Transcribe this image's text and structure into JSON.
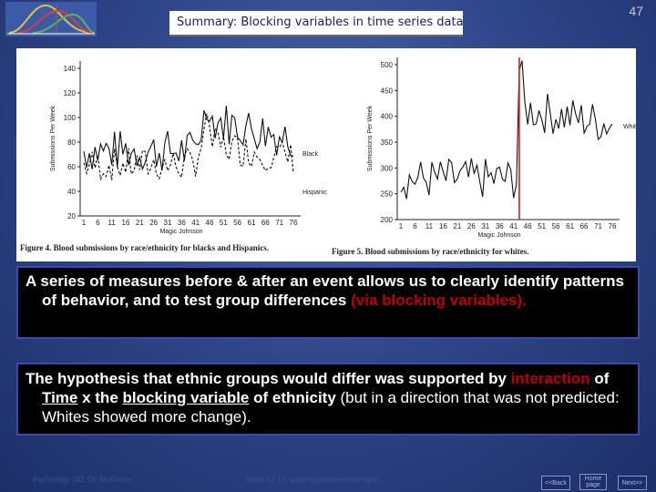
{
  "slide": {
    "title": "Summary:  Blocking variables in time series data",
    "number": "47"
  },
  "figures": [
    {
      "caption": "Figure 4. Blood submissions by race/ethnicity for blacks and Hispanics.",
      "ylabel": "Submissions Per Week",
      "xlabel": "Magic Johnson",
      "yticks": [
        "140",
        "120",
        "100",
        "80",
        "60",
        "40",
        "20"
      ],
      "xticks": [
        "1",
        "6",
        "11",
        "16",
        "21",
        "26",
        "31",
        "36",
        "41",
        "46",
        "51",
        "56",
        "61",
        "66",
        "71",
        "76"
      ],
      "series": [
        "Black",
        "Hispanic"
      ]
    },
    {
      "caption": "Figure 5. Blood submissions by race/ethnicity for whites.",
      "ylabel": "Submissions Per Week",
      "xlabel": "Magic Johnson",
      "yticks": [
        "500",
        "450",
        "400",
        "350",
        "300",
        "250",
        "200"
      ],
      "xticks": [
        "1",
        "6",
        "11",
        "16",
        "21",
        "26",
        "31",
        "36",
        "41",
        "46",
        "51",
        "56",
        "61",
        "66",
        "71",
        "76"
      ],
      "series": [
        "White"
      ]
    }
  ],
  "box1": {
    "text": "A series of measures before & after an event allows us to clearly identify patterns of behavior, and to test group differences ",
    "red": "(via blocking variables)."
  },
  "box2": {
    "p1": "The hypothesis that ethnic groups would differ was supported by ",
    "interaction": "interaction",
    "of": " of ",
    "time": "Time",
    "x_the": " x the ",
    "blocking": "blocking variable",
    "of_ethnicity": " of ethnicity",
    "tail": " (but in a direction that was not predicted: Whites showed more change)."
  },
  "footer": {
    "left": "Psychology 242, Dr. McKirnan",
    "center": "Week 12-13, quasi-experimental designs.",
    "back": "<<Back",
    "home": "Home page",
    "next": "Next>>"
  }
}
